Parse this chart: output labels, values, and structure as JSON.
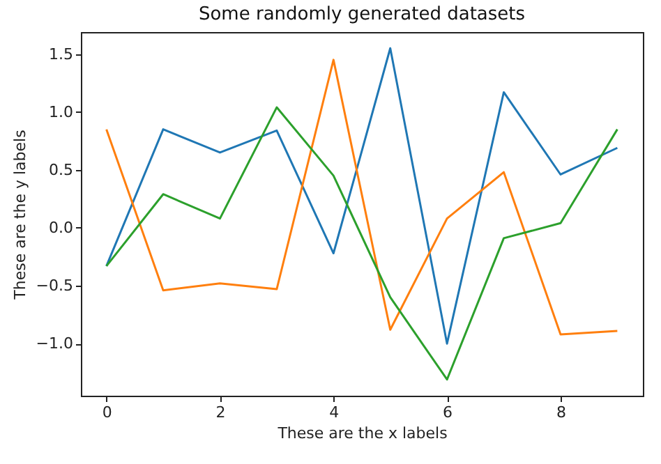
{
  "chart_data": {
    "type": "line",
    "title": "Some randomly generated datasets",
    "xlabel": "These are the x labels",
    "ylabel": "These are the y labels",
    "x": [
      0,
      1,
      2,
      3,
      4,
      5,
      6,
      7,
      8,
      9
    ],
    "series": [
      {
        "color": "#1f77b4",
        "values": [
          -0.33,
          0.85,
          0.65,
          0.84,
          -0.22,
          1.55,
          -1.0,
          1.17,
          0.46,
          0.69
        ]
      },
      {
        "color": "#ff7f0e",
        "values": [
          0.85,
          -0.54,
          -0.48,
          -0.53,
          1.45,
          -0.88,
          0.08,
          0.48,
          -0.92,
          -0.89
        ]
      },
      {
        "color": "#2ca02c",
        "values": [
          -0.33,
          0.29,
          0.08,
          1.04,
          0.45,
          -0.6,
          -1.31,
          -0.09,
          0.04,
          0.85
        ]
      }
    ],
    "xlim": [
      -0.45,
      9.45
    ],
    "xticks": [
      0,
      2,
      4,
      6,
      8
    ],
    "ylim": [
      -1.45,
      1.69
    ],
    "yticks": [
      {
        "value": -1,
        "label": "−1.0"
      },
      {
        "value": -0.5,
        "label": "−0.5"
      },
      {
        "value": 0,
        "label": "0.0"
      },
      {
        "value": 0.5,
        "label": "0.5"
      },
      {
        "value": 1,
        "label": "1.0"
      },
      {
        "value": 1.5,
        "label": "1.5"
      }
    ],
    "grid": false
  }
}
